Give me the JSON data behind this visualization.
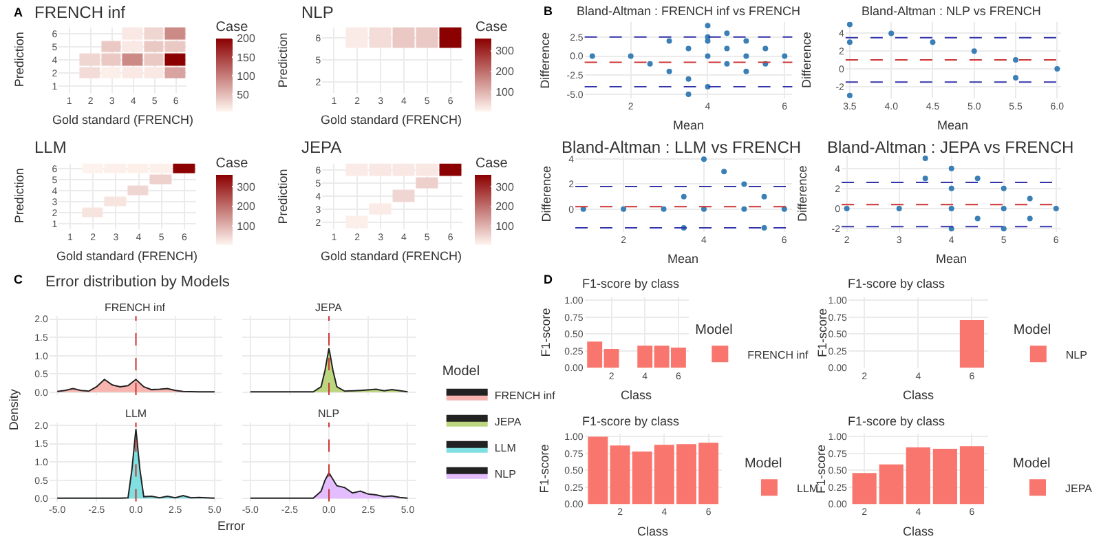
{
  "chart_data": [
    {
      "type": "heatmap",
      "title": "FRENCH inf",
      "xlabel": "Gold standard (FRENCH)",
      "ylabel": "Prediction",
      "clabel": "Case",
      "annotations": [
        "A"
      ],
      "grid": true,
      "categories": [
        "1",
        "2",
        "3",
        "4",
        "5",
        "6"
      ],
      "y_categories": [
        "6",
        "5",
        "4",
        "2",
        "1"
      ],
      "cells": [
        [
          null,
          null,
          null,
          15,
          30,
          90
        ],
        [
          null,
          null,
          40,
          15,
          40,
          40
        ],
        [
          null,
          30,
          40,
          90,
          40,
          200
        ],
        [
          null,
          25,
          10,
          15,
          15,
          70
        ],
        [
          null,
          null,
          null,
          null,
          null,
          null
        ]
      ],
      "clim": [
        5,
        200
      ],
      "cticks": [
        50,
        100,
        150,
        200
      ]
    },
    {
      "type": "heatmap",
      "title": "NLP",
      "xlabel": "Gold standard (FRENCH)",
      "ylabel": "Prediction",
      "clabel": "Case",
      "grid": true,
      "categories": [
        "1",
        "2",
        "3",
        "4",
        "5",
        "6"
      ],
      "y_categories": [
        "6",
        "5",
        "2"
      ],
      "cells": [
        [
          null,
          20,
          40,
          70,
          70,
          360
        ],
        [
          null,
          null,
          null,
          null,
          null,
          null
        ],
        [
          null,
          null,
          null,
          null,
          null,
          null
        ]
      ],
      "clim": [
        5,
        360
      ],
      "cticks": [
        100,
        200,
        300
      ]
    },
    {
      "type": "heatmap",
      "title": "LLM",
      "xlabel": "Gold standard (FRENCH)",
      "ylabel": "Prediction",
      "clabel": "Case",
      "grid": true,
      "categories": [
        "1",
        "2",
        "3",
        "4",
        "5",
        "6"
      ],
      "y_categories": [
        "6",
        "5",
        "4",
        "3",
        "2",
        "1"
      ],
      "cells": [
        [
          null,
          10,
          12,
          12,
          12,
          360
        ],
        [
          null,
          null,
          null,
          null,
          60,
          null
        ],
        [
          null,
          null,
          null,
          50,
          null,
          null
        ],
        [
          null,
          null,
          30,
          null,
          null,
          null
        ],
        [
          null,
          30,
          null,
          null,
          null,
          null
        ],
        [
          null,
          null,
          null,
          null,
          null,
          null
        ]
      ],
      "clim": [
        5,
        360
      ],
      "cticks": [
        100,
        200,
        300
      ]
    },
    {
      "type": "heatmap",
      "title": "JEPA",
      "xlabel": "Gold standard (FRENCH)",
      "ylabel": "Prediction",
      "clabel": "Case",
      "grid": true,
      "categories": [
        "1",
        "2",
        "3",
        "4",
        "5",
        "6"
      ],
      "y_categories": [
        "6",
        "5",
        "4",
        "3",
        "2"
      ],
      "cells": [
        [
          null,
          20,
          25,
          25,
          25,
          360
        ],
        [
          null,
          null,
          null,
          null,
          60,
          null
        ],
        [
          null,
          null,
          null,
          50,
          null,
          null
        ],
        [
          null,
          null,
          20,
          null,
          null,
          null
        ],
        [
          null,
          15,
          null,
          null,
          null,
          null
        ]
      ],
      "clim": [
        5,
        360
      ],
      "cticks": [
        100,
        200,
        300
      ]
    },
    {
      "type": "scatter",
      "title": "Bland-Altman : FRENCH inf vs FRENCH",
      "xlabel": "Mean",
      "ylabel": "Difference",
      "annotations": [
        "B"
      ],
      "grid": true,
      "marker": "circle",
      "x": [
        1,
        2,
        2.5,
        3,
        3,
        3.5,
        3.5,
        3.5,
        4,
        4,
        4,
        4,
        4,
        4.5,
        4.5,
        4.5,
        5,
        5,
        5,
        5.5,
        5.5,
        6
      ],
      "series": [
        {
          "color": "#3a7fb5",
          "values": [
            0,
            0,
            -1,
            2,
            -2,
            1,
            -3,
            -5,
            4,
            2,
            2.5,
            0,
            -4,
            3,
            1,
            -1,
            2,
            0,
            -2,
            1,
            -1,
            0
          ]
        }
      ],
      "xlim": [
        0.8,
        6.2
      ],
      "xticks": [
        2,
        4,
        6
      ],
      "ylim": [
        -5.5,
        4.5
      ],
      "yticks": [
        {
          "value": -5,
          "label": "-5.0"
        },
        {
          "value": -2.5,
          "label": "-2.5"
        },
        {
          "value": 0,
          "label": "0.0"
        },
        {
          "value": 2.5,
          "label": "2.5"
        }
      ],
      "ref_lines": [
        {
          "axis": "y",
          "value": 2.5,
          "color": "#3333aa",
          "line_style": "dashed"
        },
        {
          "axis": "y",
          "value": -0.8,
          "color": "#cc3333",
          "line_style": "dashed"
        },
        {
          "axis": "y",
          "value": -4,
          "color": "#3333aa",
          "line_style": "dashed"
        }
      ]
    },
    {
      "type": "scatter",
      "title": "Bland-Altman : NLP vs FRENCH",
      "xlabel": "Mean",
      "ylabel": "Difference",
      "grid": true,
      "marker": "circle",
      "x": [
        3.5,
        3.5,
        3.5,
        4,
        4.5,
        5,
        5.5,
        5.5,
        6
      ],
      "series": [
        {
          "color": "#3a7fb5",
          "values": [
            5,
            3,
            -3,
            4,
            3,
            2,
            1,
            -1,
            0
          ]
        }
      ],
      "xlim": [
        3.45,
        6.05
      ],
      "xticks": [
        {
          "value": 3.5,
          "label": "3.5"
        },
        {
          "value": 4,
          "label": "4.0"
        },
        {
          "value": 4.5,
          "label": "4.5"
        },
        {
          "value": 5,
          "label": "5.0"
        },
        {
          "value": 5.5,
          "label": "5.5"
        },
        {
          "value": 6,
          "label": "6.0"
        }
      ],
      "ylim": [
        -3.3,
        5.3
      ],
      "yticks": [
        -2,
        0,
        2,
        4
      ],
      "ref_lines": [
        {
          "axis": "y",
          "value": 3.5,
          "color": "#3333aa",
          "line_style": "dashed"
        },
        {
          "axis": "y",
          "value": 1,
          "color": "#cc3333",
          "line_style": "dashed"
        },
        {
          "axis": "y",
          "value": -1.5,
          "color": "#3333aa",
          "line_style": "dashed"
        }
      ]
    },
    {
      "type": "scatter",
      "title": "Bland-Altman : LLM vs FRENCH",
      "xlabel": "Mean",
      "ylabel": "Difference",
      "grid": true,
      "marker": "circle",
      "x": [
        1,
        2,
        3,
        3.5,
        3.5,
        4,
        4,
        4.5,
        5,
        5,
        5.5,
        5.5,
        6
      ],
      "series": [
        {
          "color": "#3a7fb5",
          "values": [
            0,
            0,
            0,
            1,
            -1.5,
            4,
            0,
            3,
            2,
            0,
            1,
            -1.5,
            0
          ]
        }
      ],
      "xlim": [
        0.8,
        6.2
      ],
      "xticks": [
        2,
        4,
        6
      ],
      "ylim": [
        -1.8,
        4.3
      ],
      "yticks": [
        0,
        2,
        4
      ],
      "ref_lines": [
        {
          "axis": "y",
          "value": 1.8,
          "color": "#3333aa",
          "line_style": "dashed"
        },
        {
          "axis": "y",
          "value": 0.2,
          "color": "#cc3333",
          "line_style": "dashed"
        },
        {
          "axis": "y",
          "value": -1.5,
          "color": "#3333aa",
          "line_style": "dashed"
        }
      ]
    },
    {
      "type": "scatter",
      "title": "Bland-Altman : JEPA vs FRENCH",
      "xlabel": "Mean",
      "ylabel": "Difference",
      "grid": true,
      "marker": "circle",
      "x": [
        2,
        3,
        3.5,
        3.5,
        4,
        4,
        4,
        4,
        4.5,
        4.5,
        5,
        5,
        5,
        5.5,
        5.5,
        6
      ],
      "series": [
        {
          "color": "#3a7fb5",
          "values": [
            0,
            0,
            5,
            3,
            4,
            2,
            0,
            -2,
            3,
            -1,
            2,
            0,
            -2,
            1,
            -1,
            0
          ]
        }
      ],
      "xlim": [
        1.9,
        6.1
      ],
      "xticks": [
        2,
        3,
        4,
        5,
        6
      ],
      "ylim": [
        -2.3,
        5.3
      ],
      "yticks": [
        -2,
        0,
        2,
        4
      ],
      "ref_lines": [
        {
          "axis": "y",
          "value": 2.6,
          "color": "#3333aa",
          "line_style": "dashed"
        },
        {
          "axis": "y",
          "value": 0.4,
          "color": "#cc3333",
          "line_style": "dashed"
        },
        {
          "axis": "y",
          "value": -1.8,
          "color": "#3333aa",
          "line_style": "dashed"
        }
      ]
    },
    {
      "type": "area",
      "title": "Error distribution by Models",
      "legend_title": "Model",
      "legend": "right",
      "annotations": [
        "C"
      ],
      "grid": true,
      "tick_labels": "y",
      "x": [
        -5,
        -4.5,
        -4,
        -3.5,
        -3,
        -2.5,
        -2,
        -1.5,
        -1,
        -0.5,
        0,
        0.5,
        1,
        1.5,
        2,
        2.5,
        3,
        4,
        5
      ],
      "series": [
        {
          "name": "FRENCH inf",
          "color": "#f8b5b0",
          "values": [
            0.02,
            0.05,
            0.1,
            0.05,
            0.03,
            0.15,
            0.35,
            0.2,
            0.15,
            0.18,
            0.35,
            0.15,
            0.07,
            0.08,
            0.1,
            0.05,
            0.02,
            0.01,
            0.01
          ]
        }
      ],
      "xlim": [
        -5.5,
        5.5
      ],
      "xticks": [
        {
          "value": -5,
          "label": null
        },
        {
          "value": -2.5,
          "label": null
        },
        {
          "value": 0,
          "label": null
        },
        {
          "value": 2.5,
          "label": null
        },
        {
          "value": 5,
          "label": null
        }
      ],
      "ylim": [
        -0.08,
        2.08
      ],
      "yticks": [
        {
          "value": 0,
          "label": "0.0"
        },
        {
          "value": 0.5,
          "label": "0.5"
        },
        {
          "value": 1,
          "label": "1.0"
        },
        {
          "value": 1.5,
          "label": "1.5"
        },
        {
          "value": 2,
          "label": "2.0"
        }
      ],
      "ref_lines": [
        {
          "axis": "x",
          "value": 0,
          "color": "#cc3333",
          "line_style": "dashed"
        }
      ]
    },
    {
      "type": "area",
      "legend": "right",
      "grid": true,
      "tick_labels": false,
      "x": [
        -5,
        -3,
        -1,
        -0.5,
        -0.25,
        0,
        0.25,
        0.5,
        1,
        2,
        3,
        3.5,
        4,
        5
      ],
      "series": [
        {
          "name": "JEPA",
          "color": "#bcd67f",
          "values": [
            0.01,
            0.01,
            0.01,
            0.15,
            0.6,
            1.2,
            0.6,
            0.15,
            0.03,
            0.05,
            0.08,
            0.04,
            0.07,
            0.01
          ]
        }
      ],
      "xlim": [
        -5.5,
        5.5
      ],
      "xticks": [
        {
          "value": -5,
          "label": null
        },
        {
          "value": -2.5,
          "label": null
        },
        {
          "value": 0,
          "label": null
        },
        {
          "value": 2.5,
          "label": null
        },
        {
          "value": 5,
          "label": null
        }
      ],
      "ylim": [
        -0.08,
        2.08
      ],
      "yticks": [
        {
          "value": 0,
          "label": null
        },
        {
          "value": 0.5,
          "label": null
        },
        {
          "value": 1,
          "label": null
        },
        {
          "value": 1.5,
          "label": null
        },
        {
          "value": 2,
          "label": null
        }
      ],
      "ref_lines": [
        {
          "axis": "x",
          "value": 0,
          "color": "#cc3333",
          "line_style": "dashed"
        }
      ]
    },
    {
      "type": "area",
      "legend": "right",
      "grid": true,
      "xlabel": "Error",
      "ylabel": "Density",
      "x": [
        -5,
        -3,
        -1,
        -0.5,
        -0.25,
        0,
        0.25,
        0.5,
        1,
        1.5,
        2,
        2.5,
        3,
        3.5,
        4,
        5
      ],
      "series": [
        {
          "name": "LLM",
          "color": "#7fdfe1",
          "values": [
            0.01,
            0.01,
            0.01,
            0.02,
            0.8,
            1.9,
            0.8,
            0.05,
            0.06,
            0.02,
            0.06,
            0.02,
            0.08,
            0.02,
            0.03,
            0.01
          ]
        }
      ],
      "xlim": [
        -5.5,
        5.5
      ],
      "xticks": [
        {
          "value": -5,
          "label": "-5.0"
        },
        {
          "value": -2.5,
          "label": "-2.5"
        },
        {
          "value": 0,
          "label": "0.0"
        },
        {
          "value": 2.5,
          "label": "2.5"
        },
        {
          "value": 5,
          "label": "5.0"
        }
      ],
      "ylim": [
        -0.08,
        2.08
      ],
      "yticks": [
        {
          "value": 0,
          "label": "0.0"
        },
        {
          "value": 0.5,
          "label": "0.5"
        },
        {
          "value": 1,
          "label": "1.0"
        },
        {
          "value": 1.5,
          "label": "1.5"
        },
        {
          "value": 2,
          "label": "2.0"
        }
      ],
      "ref_lines": [
        {
          "axis": "x",
          "value": 0,
          "color": "#cc3333",
          "line_style": "dashed"
        }
      ]
    },
    {
      "type": "area",
      "legend": "right",
      "grid": true,
      "tick_labels": "x",
      "x": [
        -5,
        -3,
        -1,
        -0.5,
        -0.25,
        0,
        0.5,
        1,
        1.5,
        2,
        2.5,
        3,
        3.5,
        4,
        4.5,
        5
      ],
      "series": [
        {
          "name": "NLP",
          "color": "#e3bdff",
          "values": [
            0.01,
            0.01,
            0.01,
            0.2,
            0.5,
            0.7,
            0.35,
            0.3,
            0.15,
            0.2,
            0.12,
            0.1,
            0.05,
            0.07,
            0.03,
            0.01
          ]
        }
      ],
      "xlim": [
        -5.5,
        5.5
      ],
      "xticks": [
        {
          "value": -5,
          "label": "-5.0"
        },
        {
          "value": -2.5,
          "label": "-2.5"
        },
        {
          "value": 0,
          "label": "0.0"
        },
        {
          "value": 2.5,
          "label": "2.5"
        },
        {
          "value": 5,
          "label": "5.0"
        }
      ],
      "ylim": [
        -0.08,
        2.08
      ],
      "yticks": [
        {
          "value": 0,
          "label": null
        },
        {
          "value": 0.5,
          "label": null
        },
        {
          "value": 1,
          "label": null
        },
        {
          "value": 1.5,
          "label": null
        },
        {
          "value": 2,
          "label": null
        }
      ],
      "ref_lines": [
        {
          "axis": "x",
          "value": 0,
          "color": "#cc3333",
          "line_style": "dashed"
        }
      ]
    },
    {
      "type": "bar",
      "title": "F1-score by class",
      "xlabel": "Class",
      "ylabel": "F1-score",
      "legend_title": "Model",
      "legend": "right",
      "annotations": [
        "D"
      ],
      "grid": true,
      "x": [
        1,
        2,
        3,
        4,
        5,
        6
      ],
      "series": [
        {
          "name": "FRENCH inf",
          "color": "#f8766d",
          "values": [
            0.39,
            0.28,
            null,
            0.33,
            0.33,
            0.3
          ]
        }
      ],
      "xlim": [
        0.4,
        6.6
      ],
      "xticks": [
        2,
        4,
        6
      ],
      "ylim": [
        0,
        1.05
      ],
      "yticks": [
        {
          "value": 0,
          "label": "0.00"
        },
        {
          "value": 0.25,
          "label": "0.25"
        },
        {
          "value": 0.5,
          "label": "0.50"
        },
        {
          "value": 0.75,
          "label": "0.75"
        },
        {
          "value": 1,
          "label": "1.00"
        }
      ]
    },
    {
      "type": "bar",
      "title": "F1-score by class",
      "xlabel": "Class",
      "ylabel": "F1-score",
      "legend_title": "Model",
      "legend": "right",
      "grid": true,
      "x": [
        6
      ],
      "series": [
        {
          "name": "NLP",
          "color": "#f8766d",
          "values": [
            0.71
          ]
        }
      ],
      "xlim": [
        1.4,
        6.6
      ],
      "xticks": [
        2,
        4,
        6
      ],
      "ylim": [
        0,
        1.05
      ],
      "yticks": [
        {
          "value": 0,
          "label": "0.00"
        },
        {
          "value": 0.25,
          "label": "0.25"
        },
        {
          "value": 0.5,
          "label": "0.50"
        },
        {
          "value": 0.75,
          "label": "0.75"
        },
        {
          "value": 1,
          "label": "1.00"
        }
      ]
    },
    {
      "type": "bar",
      "title": "F1-score by class",
      "xlabel": "Class",
      "ylabel": "F1-score",
      "legend_title": "Model",
      "legend": "right",
      "grid": true,
      "x": [
        1,
        2,
        3,
        4,
        5,
        6
      ],
      "series": [
        {
          "name": "LLM",
          "color": "#f8766d",
          "values": [
            1.0,
            0.87,
            0.78,
            0.88,
            0.89,
            0.91
          ]
        }
      ],
      "xlim": [
        0.4,
        6.6
      ],
      "xticks": [
        2,
        4,
        6
      ],
      "ylim": [
        0,
        1.05
      ],
      "yticks": [
        {
          "value": 0,
          "label": "0.00"
        },
        {
          "value": 0.25,
          "label": "0.25"
        },
        {
          "value": 0.5,
          "label": "0.50"
        },
        {
          "value": 0.75,
          "label": "0.75"
        },
        {
          "value": 1,
          "label": "1.00"
        }
      ]
    },
    {
      "type": "bar",
      "title": "F1-score by class",
      "xlabel": "Class",
      "ylabel": "F1-score",
      "legend_title": "Model",
      "legend": "right",
      "grid": true,
      "x": [
        2,
        3,
        4,
        5,
        6
      ],
      "series": [
        {
          "name": "JEPA",
          "color": "#f8766d",
          "values": [
            0.46,
            0.59,
            0.84,
            0.82,
            0.86
          ]
        }
      ],
      "xlim": [
        1.4,
        6.6
      ],
      "xticks": [
        2,
        4,
        6
      ],
      "ylim": [
        0,
        1.05
      ],
      "yticks": [
        {
          "value": 0,
          "label": "0.00"
        },
        {
          "value": 0.25,
          "label": "0.25"
        },
        {
          "value": 0.5,
          "label": "0.50"
        },
        {
          "value": 0.75,
          "label": "0.75"
        },
        {
          "value": 1,
          "label": "1.00"
        }
      ]
    }
  ]
}
